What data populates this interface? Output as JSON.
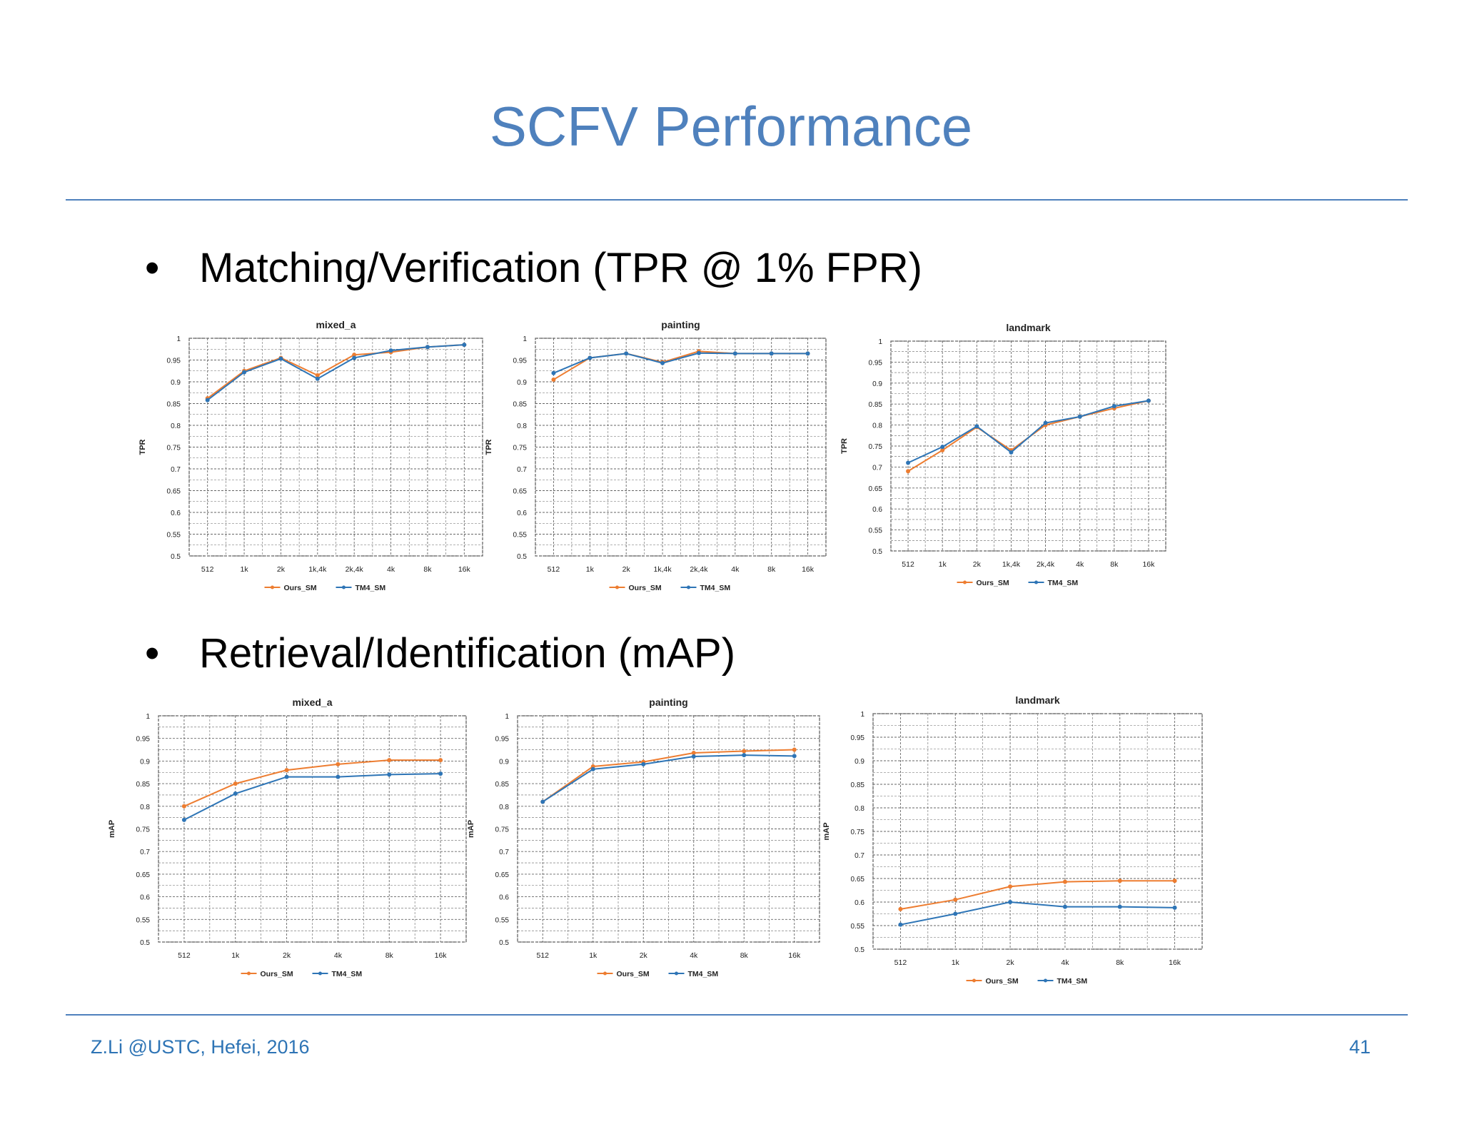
{
  "slide": {
    "title": "SCFV Performance",
    "bullet_1": "Matching/Verification (TPR @ 1% FPR)",
    "bullet_2": "Retrieval/Identification (mAP)",
    "bullet_symbol": "•",
    "footer_left": "Z.Li @USTC, Hefei, 2016",
    "page_number": "41",
    "accent_color": "#4f81bd"
  },
  "series_colors": {
    "Ours_SM": "#ed7d31",
    "TM4_SM": "#2e75b6"
  },
  "chart_data": [
    {
      "type": "line",
      "title": "mixed_a",
      "xlabel": "",
      "ylabel": "TPR",
      "categories": [
        "512",
        "1k",
        "2k",
        "1k,4k",
        "2k,4k",
        "4k",
        "8k",
        "16k"
      ],
      "ylim": [
        0.5,
        1
      ],
      "yticks": [
        "0.5",
        "0.55",
        "0.6",
        "0.65",
        "0.7",
        "0.75",
        "0.8",
        "0.85",
        "0.9",
        "0.95",
        "1"
      ],
      "grid": true,
      "legend_position": "bottom",
      "series": [
        {
          "name": "Ours_SM",
          "values": [
            0.862,
            0.925,
            0.955,
            0.915,
            0.962,
            0.968,
            0.98,
            0.985
          ]
        },
        {
          "name": "TM4_SM",
          "values": [
            0.858,
            0.922,
            0.953,
            0.907,
            0.955,
            0.972,
            0.98,
            0.985
          ]
        }
      ]
    },
    {
      "type": "line",
      "title": "painting",
      "xlabel": "",
      "ylabel": "TPR",
      "categories": [
        "512",
        "1k",
        "2k",
        "1k,4k",
        "2k,4k",
        "4k",
        "8k",
        "16k"
      ],
      "ylim": [
        0.5,
        1
      ],
      "yticks": [
        "0.5",
        "0.55",
        "0.6",
        "0.65",
        "0.7",
        "0.75",
        "0.8",
        "0.85",
        "0.9",
        "0.95",
        "1"
      ],
      "grid": true,
      "legend_position": "bottom",
      "series": [
        {
          "name": "Ours_SM",
          "values": [
            0.905,
            0.955,
            0.965,
            0.945,
            0.97,
            0.965,
            0.965,
            0.965
          ]
        },
        {
          "name": "TM4_SM",
          "values": [
            0.92,
            0.955,
            0.965,
            0.943,
            0.966,
            0.965,
            0.965,
            0.965
          ]
        }
      ]
    },
    {
      "type": "line",
      "title": "landmark",
      "xlabel": "",
      "ylabel": "TPR",
      "categories": [
        "512",
        "1k",
        "2k",
        "1k,4k",
        "2k,4k",
        "4k",
        "8k",
        "16k"
      ],
      "ylim": [
        0.5,
        1
      ],
      "yticks": [
        "0.5",
        "0.55",
        "0.6",
        "0.65",
        "0.7",
        "0.75",
        "0.8",
        "0.85",
        "0.9",
        "0.95",
        "1"
      ],
      "grid": true,
      "legend_position": "bottom",
      "series": [
        {
          "name": "Ours_SM",
          "values": [
            0.69,
            0.74,
            0.795,
            0.74,
            0.8,
            0.82,
            0.84,
            0.858
          ]
        },
        {
          "name": "TM4_SM",
          "values": [
            0.71,
            0.748,
            0.797,
            0.735,
            0.805,
            0.82,
            0.845,
            0.858
          ]
        }
      ]
    },
    {
      "type": "line",
      "title": "mixed_a",
      "xlabel": "",
      "ylabel": "mAP",
      "categories": [
        "512",
        "1k",
        "2k",
        "4k",
        "8k",
        "16k"
      ],
      "ylim": [
        0.5,
        1
      ],
      "yticks": [
        "0.5",
        "0.55",
        "0.6",
        "0.65",
        "0.7",
        "0.75",
        "0.8",
        "0.85",
        "0.9",
        "0.95",
        "1"
      ],
      "grid": true,
      "legend_position": "bottom",
      "series": [
        {
          "name": "Ours_SM",
          "values": [
            0.8,
            0.85,
            0.88,
            0.893,
            0.902,
            0.902
          ]
        },
        {
          "name": "TM4_SM",
          "values": [
            0.77,
            0.828,
            0.865,
            0.865,
            0.87,
            0.872
          ]
        }
      ]
    },
    {
      "type": "line",
      "title": "painting",
      "xlabel": "",
      "ylabel": "mAP",
      "categories": [
        "512",
        "1k",
        "2k",
        "4k",
        "8k",
        "16k"
      ],
      "ylim": [
        0.5,
        1
      ],
      "yticks": [
        "0.5",
        "0.55",
        "0.6",
        "0.65",
        "0.7",
        "0.75",
        "0.8",
        "0.85",
        "0.9",
        "0.95",
        "1"
      ],
      "grid": true,
      "legend_position": "bottom",
      "series": [
        {
          "name": "Ours_SM",
          "values": [
            0.81,
            0.888,
            0.898,
            0.918,
            0.922,
            0.925
          ]
        },
        {
          "name": "TM4_SM",
          "values": [
            0.81,
            0.882,
            0.893,
            0.91,
            0.913,
            0.911
          ]
        }
      ]
    },
    {
      "type": "line",
      "title": "landmark",
      "xlabel": "",
      "ylabel": "mAP",
      "categories": [
        "512",
        "1k",
        "2k",
        "4k",
        "8k",
        "16k"
      ],
      "ylim": [
        0.5,
        1
      ],
      "yticks": [
        "0.5",
        "0.55",
        "0.6",
        "0.65",
        "0.7",
        "0.75",
        "0.8",
        "0.85",
        "0.9",
        "0.95",
        "1"
      ],
      "grid": true,
      "legend_position": "bottom",
      "series": [
        {
          "name": "Ours_SM",
          "values": [
            0.585,
            0.605,
            0.633,
            0.643,
            0.645,
            0.645
          ]
        },
        {
          "name": "TM4_SM",
          "values": [
            0.552,
            0.575,
            0.6,
            0.59,
            0.59,
            0.588
          ]
        }
      ]
    }
  ]
}
